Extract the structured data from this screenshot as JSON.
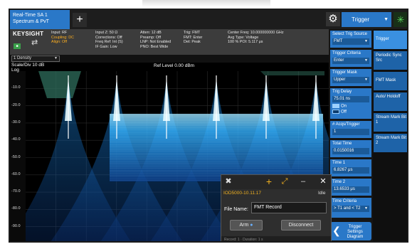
{
  "app": {
    "tab_line1": "Real-Time SA 1",
    "tab_line2": "Spectrum & PvT",
    "add_tab_icon": "plus-icon",
    "menu_title": "Trigger"
  },
  "info": {
    "brand": "KEYSIGHT",
    "col1": [
      "Input: RF",
      "Coupling: DC",
      "Align: Off"
    ],
    "col2": [
      "Input Z: 50 Ω",
      "Corrections: Off",
      "Freq Ref: Int (S)",
      "IF Gain: Low"
    ],
    "col3": [
      "Atten: 12 dB",
      "Preamp: Off",
      "LNP: Not Enabled",
      "PNO: Best Wide"
    ],
    "col4": [
      "Trig: FMT",
      "FMT: Enter",
      "Det: Peak"
    ],
    "col5": [
      "Center Freq: 10.000000000 GHz",
      "Avg Type: Voltage",
      "100 % POI: 5.117 μs"
    ]
  },
  "density": {
    "label": "1 Density"
  },
  "plot": {
    "scale": "Scale/Div 10 dB",
    "log": "Log",
    "ref_level": "Ref Level 0.00 dBm",
    "y_labels": [
      "-10.0",
      "-20.0",
      "-30.0",
      "-40.0",
      "-50.0",
      "-60.0",
      "-70.0",
      "-80.0",
      "-90.0"
    ]
  },
  "softkeys": {
    "source_label": "Select Trig Source",
    "source_value": "FMT",
    "criteria_label": "Trigger Criteria",
    "criteria_value": "Enter",
    "mask_label": "Trigger Mask",
    "mask_value": "Upper",
    "delay_label": "Trig Delay",
    "delay_value": "75.01 ns",
    "toggle_on": "On",
    "toggle_off": "Off",
    "acqs_label": "# Acqs/Trigger",
    "acqs_value": "1",
    "total_label": "Total Time",
    "total_value": "0.0150016",
    "time1_label": "Time 1",
    "time1_value": "6.8267 μs",
    "time2_label": "Time 2",
    "time2_value": "13.6533 μs",
    "tcrit_label": "Time Criteria",
    "tcrit_value": "> T1 and < T2",
    "diagram_line1": "Trigger Settings",
    "diagram_line2": "Diagram"
  },
  "tabs": [
    "Trigger",
    "Periodic Sync Src",
    "FMT Mask",
    "Auto/ Holdoff",
    "Stream Mark Bit 1",
    "Stream Mark Bit 2"
  ],
  "popup": {
    "device_id": "IOD5000-10.11.17",
    "status": "Idle",
    "filename_label": "File Name:",
    "filename_value": "FMT Record",
    "arm": "Arm",
    "disconnect": "Disconnect",
    "bottom_text": "Record: 1 · Duration: 1 s"
  },
  "colors": {
    "accent": "#2a78c8",
    "trace": "#1ea8ff",
    "mask": "#2f6e5c",
    "highlight": "#f0b020"
  }
}
